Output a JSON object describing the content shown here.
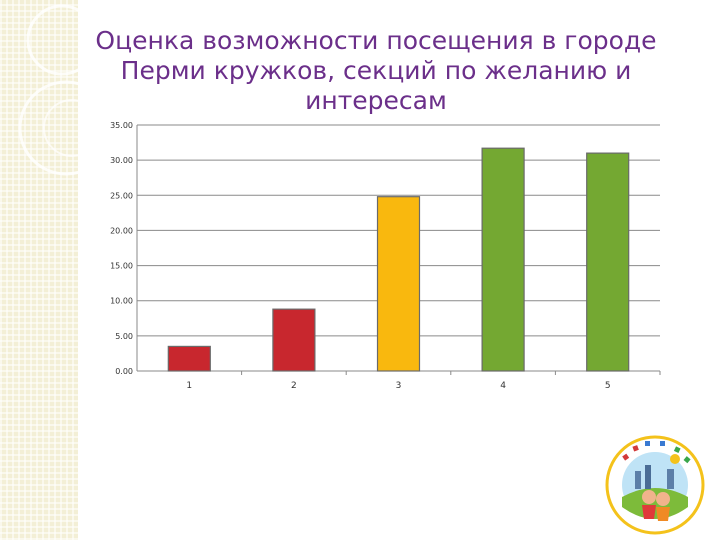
{
  "slide": {
    "title": "Оценка возможности посещения  в городе Перми кружков, секций по желанию и интересам"
  },
  "colors": {
    "red": "#c8272e",
    "orange": "#f9b80e",
    "green": "#74a832",
    "title": "#6b2f8a"
  },
  "chart_data": {
    "type": "bar",
    "categories": [
      "1",
      "2",
      "3",
      "4",
      "5"
    ],
    "values": [
      3.5,
      8.8,
      24.8,
      31.7,
      31.0
    ],
    "bar_colors": [
      "#c8272e",
      "#c8272e",
      "#f9b80e",
      "#74a832",
      "#74a832"
    ],
    "yticks": [
      "35.00",
      "30.00",
      "25.00",
      "20.00",
      "15.00",
      "10.00",
      "5.00",
      "0.00"
    ],
    "ylim": [
      0,
      35
    ],
    "grid": true,
    "title": "",
    "xlabel": "",
    "ylabel": ""
  },
  "logo": {
    "name": "children-park-emblem-icon"
  }
}
